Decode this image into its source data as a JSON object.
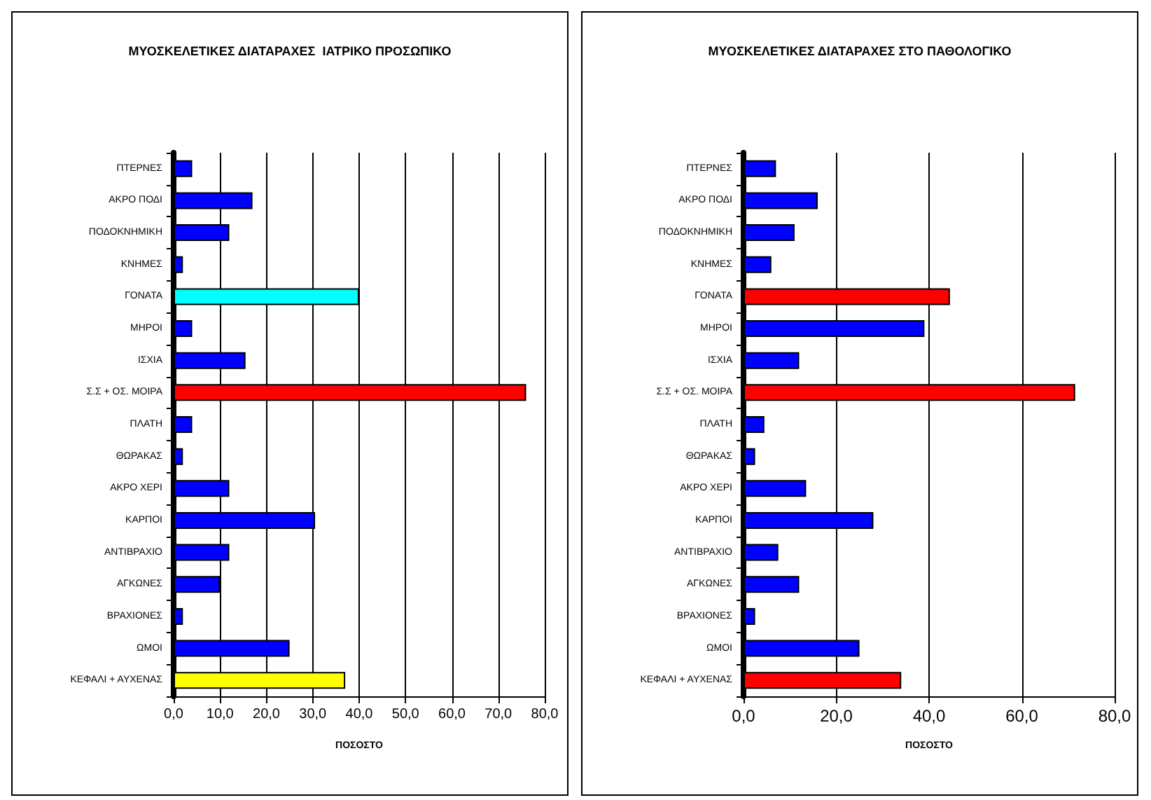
{
  "chart_data": [
    {
      "type": "bar",
      "orientation": "horizontal",
      "title": "ΜΥΟΣΚΕΛΕΤΙΚΕΣ ΔΙΑΤΑΡΑΧΕΣ  ΙΑΤΡΙΚΟ ΠΡΟΣΩΠΙΚΟ",
      "xlabel": "ΠΟΣΟΣΤΟ",
      "categories": [
        "ΠΤΕΡΝΕΣ",
        "ΑΚΡΟ ΠΟΔΙ",
        "ΠΟΔΟΚΝΗΜΙΚΗ",
        "ΚΝΗΜΕΣ",
        "ΓΟΝΑΤΑ",
        "ΜΗΡΟΙ",
        "ΙΣΧΙΑ",
        "Σ.Σ + ΟΣ. ΜΟΙΡΑ",
        "ΠΛΑΤΗ",
        "ΘΩΡΑΚΑΣ",
        "ΑΚΡΟ ΧΕΡΙ",
        "ΚΑΡΠΟΙ",
        "ΑΝΤΙΒΡΑΧΙΟ",
        "ΑΓΚΩΝΕΣ",
        "ΒΡΑΧΙΟΝΕΣ",
        "ΩΜΟΙ",
        "ΚΕΦΑΛΙ + ΑΥΧΕΝΑΣ"
      ],
      "values": [
        4,
        17,
        12,
        2,
        40,
        4,
        15.5,
        76,
        4,
        2,
        12,
        30.5,
        12,
        10,
        2,
        25,
        37
      ],
      "colors": [
        "#0000ff",
        "#0000ff",
        "#0000ff",
        "#0000ff",
        "#00ffff",
        "#0000ff",
        "#0000ff",
        "#ff0000",
        "#0000ff",
        "#0000ff",
        "#0000ff",
        "#0000ff",
        "#0000ff",
        "#0000ff",
        "#0000ff",
        "#0000ff",
        "#ffff00"
      ],
      "xlim": [
        0,
        80
      ],
      "xticks": [
        {
          "value": 0,
          "label": "0,0"
        },
        {
          "value": 10,
          "label": "10,0"
        },
        {
          "value": 20,
          "label": "20,0"
        },
        {
          "value": 30,
          "label": "30,0"
        },
        {
          "value": 40,
          "label": "40,0"
        },
        {
          "value": 50,
          "label": "50,0"
        },
        {
          "value": 60,
          "label": "60,0"
        },
        {
          "value": 70,
          "label": "70,0"
        },
        {
          "value": 80,
          "label": "80,0"
        }
      ],
      "grid": "x"
    },
    {
      "type": "bar",
      "orientation": "horizontal",
      "title": "ΜΥΟΣΚΕΛΕΤΙΚΕΣ ΔΙΑΤΑΡΑΧΕΣ ΣΤΟ ΠΑΘΟΛΟΓΙΚΟ",
      "xlabel": "ΠΟΣΟΣΤΟ",
      "categories": [
        "ΠΤΕΡΝΕΣ",
        "ΑΚΡΟ ΠΟΔΙ",
        "ΠΟΔΟΚΝΗΜΙΚΗ",
        "ΚΝΗΜΕΣ",
        "ΓΟΝΑΤΑ",
        "ΜΗΡΟΙ",
        "ΙΣΧΙΑ",
        "Σ.Σ + ΟΣ. ΜΟΙΡΑ",
        "ΠΛΑΤΗ",
        "ΘΩΡΑΚΑΣ",
        "ΑΚΡΟ ΧΕΡΙ",
        "ΚΑΡΠΟΙ",
        "ΑΝΤΙΒΡΑΧΙΟ",
        "ΑΓΚΩΝΕΣ",
        "ΒΡΑΧΙΟΝΕΣ",
        "ΩΜΟΙ",
        "ΚΕΦΑΛΙ + ΑΥΧΕΝΑΣ"
      ],
      "values": [
        7,
        16,
        11,
        6,
        44.5,
        39,
        12,
        71.5,
        4.5,
        2.5,
        13.5,
        28,
        7.5,
        12,
        2.5,
        25,
        34
      ],
      "colors": [
        "#0000ff",
        "#0000ff",
        "#0000ff",
        "#0000ff",
        "#ff0000",
        "#0000ff",
        "#0000ff",
        "#ff0000",
        "#0000ff",
        "#0000ff",
        "#0000ff",
        "#0000ff",
        "#0000ff",
        "#0000ff",
        "#0000ff",
        "#0000ff",
        "#ff0000"
      ],
      "xlim": [
        0,
        80
      ],
      "xticks": [
        {
          "value": 0,
          "label": "0,0"
        },
        {
          "value": 20,
          "label": "20,0"
        },
        {
          "value": 40,
          "label": "40,0"
        },
        {
          "value": 60,
          "label": "60,0"
        },
        {
          "value": 80,
          "label": "80,0"
        }
      ],
      "grid": "x"
    }
  ]
}
